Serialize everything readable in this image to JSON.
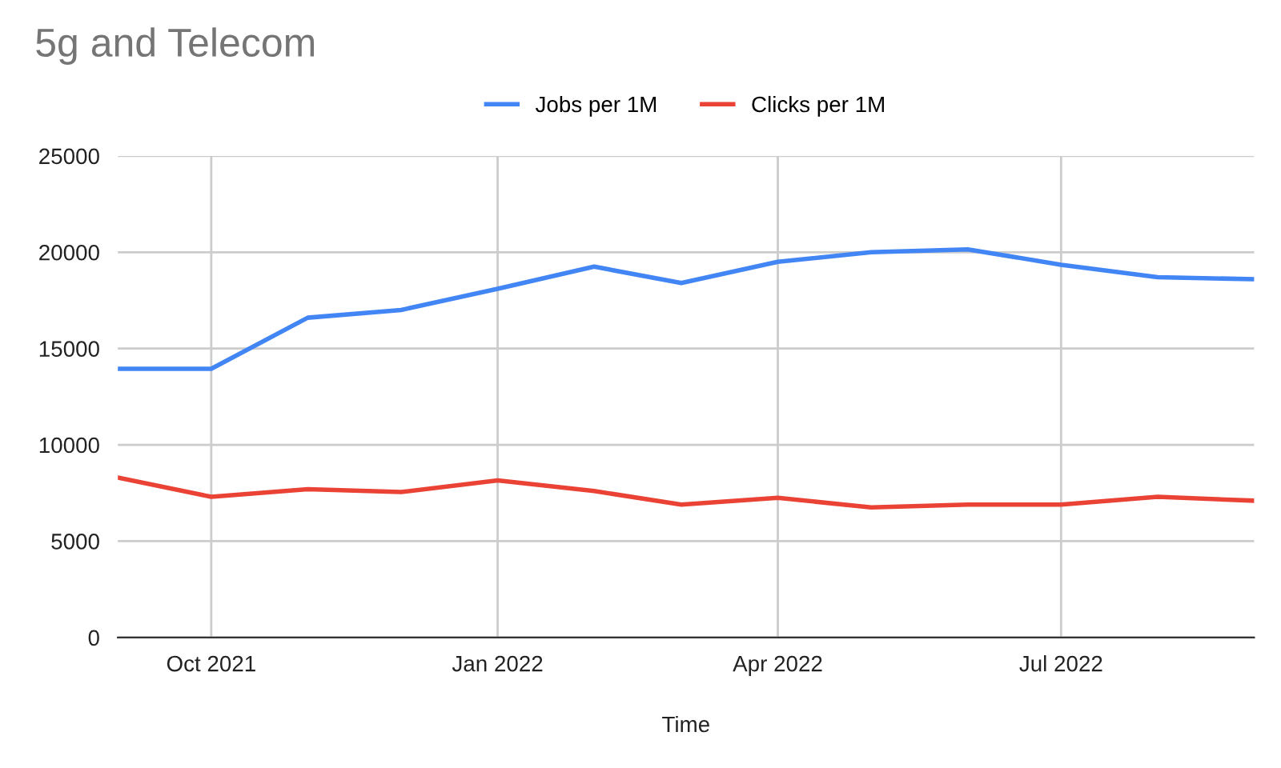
{
  "chart_data": {
    "type": "line",
    "title": "5g and Telecom",
    "xlabel": "Time",
    "x": [
      "2021-09-01",
      "2021-10-01",
      "2021-11-01",
      "2021-12-01",
      "2022-01-01",
      "2022-02-01",
      "2022-03-01",
      "2022-04-01",
      "2022-05-01",
      "2022-06-01",
      "2022-07-01",
      "2022-08-01",
      "2022-09-01"
    ],
    "series": [
      {
        "name": "Jobs per 1M",
        "color": "#4285f4",
        "values": [
          13950,
          13950,
          16600,
          17000,
          18100,
          19250,
          18400,
          19500,
          20000,
          20150,
          19350,
          18700,
          18600
        ]
      },
      {
        "name": "Clicks per 1M",
        "color": "#ea4335",
        "values": [
          8300,
          7300,
          7700,
          7550,
          8150,
          7600,
          6900,
          7250,
          6750,
          6900,
          6900,
          7300,
          7100
        ]
      }
    ],
    "xlim": [
      "2021-09-01",
      "2022-09-01"
    ],
    "xticks": [
      {
        "value": "2021-10-01",
        "label": "Oct 2021"
      },
      {
        "value": "2022-01-01",
        "label": "Jan 2022"
      },
      {
        "value": "2022-04-01",
        "label": "Apr 2022"
      },
      {
        "value": "2022-07-01",
        "label": "Jul 2022"
      }
    ],
    "ylim": [
      0,
      25000
    ],
    "yticks": [
      0,
      5000,
      10000,
      15000,
      20000,
      25000
    ],
    "grid": true,
    "legend": "top",
    "marker": "none",
    "line_style": "solid"
  }
}
